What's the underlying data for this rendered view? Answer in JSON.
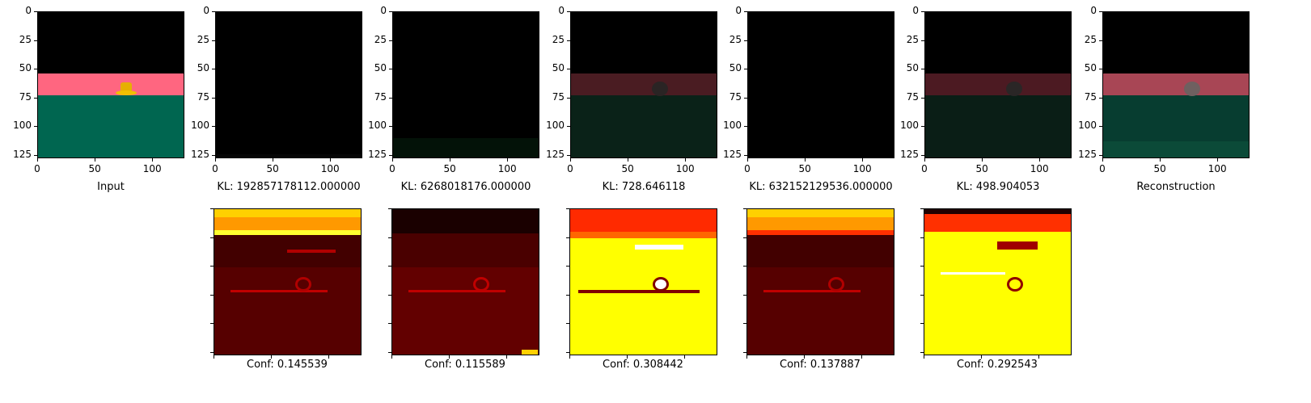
{
  "figure": {
    "top_row": [
      {
        "name": "input",
        "caption": "Input"
      },
      {
        "name": "component-1",
        "caption": "KL: 192857178112.000000"
      },
      {
        "name": "component-2",
        "caption": "KL: 6268018176.000000"
      },
      {
        "name": "component-3",
        "caption": "KL: 728.646118"
      },
      {
        "name": "component-4",
        "caption": "KL: 632152129536.000000"
      },
      {
        "name": "component-5",
        "caption": "KL: 498.904053"
      },
      {
        "name": "reconstruction",
        "caption": "Reconstruction"
      }
    ],
    "bottom_row": [
      {
        "name": "confidence-1",
        "caption": "Conf: 0.145539"
      },
      {
        "name": "confidence-2",
        "caption": "Conf: 0.115589"
      },
      {
        "name": "confidence-3",
        "caption": "Conf: 0.308442"
      },
      {
        "name": "confidence-4",
        "caption": "Conf: 0.137887"
      },
      {
        "name": "confidence-5",
        "caption": "Conf: 0.292543"
      }
    ],
    "x_tick_labels": [
      "0",
      "50",
      "100"
    ],
    "y_tick_labels": [
      "0",
      "25",
      "50",
      "75",
      "100",
      "125"
    ]
  }
}
